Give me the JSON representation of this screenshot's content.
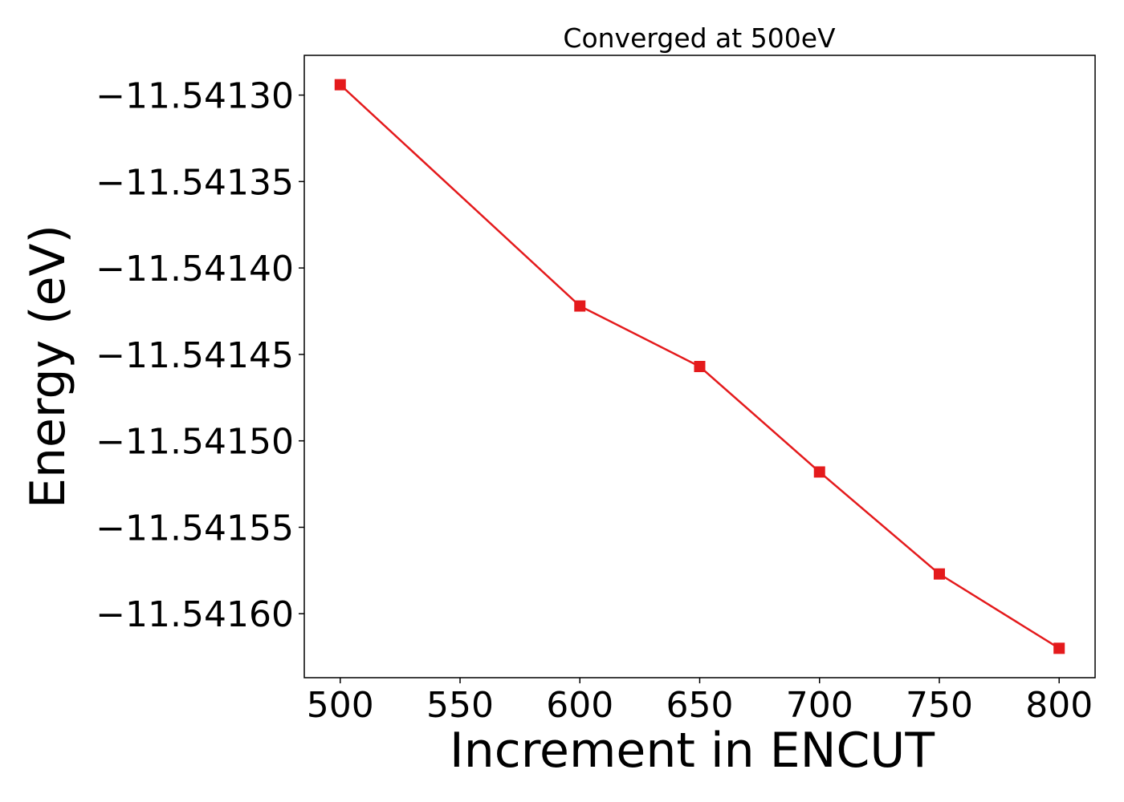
{
  "chart_data": {
    "type": "line",
    "title": "Converged at 500eV",
    "xlabel": "Increment in ENCUT",
    "ylabel": "Energy (eV)",
    "xlim": [
      485,
      815
    ],
    "ylim": [
      -11.541637,
      -11.541277
    ],
    "xticks": [
      500,
      550,
      600,
      650,
      700,
      750,
      800
    ],
    "xtick_labels": [
      "500",
      "550",
      "600",
      "650",
      "700",
      "750",
      "800"
    ],
    "yticks": [
      -11.5413,
      -11.54135,
      -11.5414,
      -11.54145,
      -11.5415,
      -11.54155,
      -11.5416
    ],
    "ytick_labels": [
      "−11.54130",
      "−11.54135",
      "−11.54140",
      "−11.54145",
      "−11.54150",
      "−11.54155",
      "−11.54160"
    ],
    "grid": false,
    "series": [
      {
        "color": "#e41a1c",
        "marker": "square",
        "x": [
          500,
          600,
          650,
          700,
          750,
          800
        ],
        "y": [
          -11.541294,
          -11.541422,
          -11.541457,
          -11.541518,
          -11.541577,
          -11.54162
        ]
      }
    ]
  }
}
